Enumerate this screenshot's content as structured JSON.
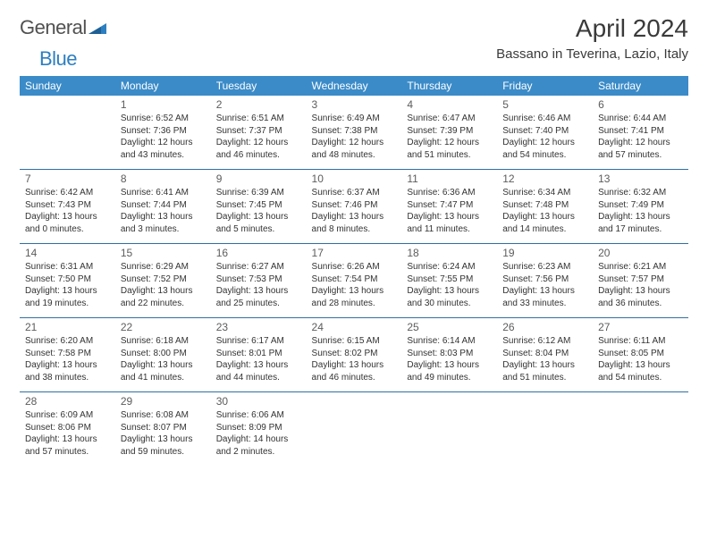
{
  "brand": {
    "part1": "General",
    "part2": "Blue"
  },
  "title": "April 2024",
  "location": "Bassano in Teverina, Lazio, Italy",
  "colors": {
    "header_bg": "#3b8bc8",
    "rule": "#2f6fa3"
  },
  "day_headers": [
    "Sunday",
    "Monday",
    "Tuesday",
    "Wednesday",
    "Thursday",
    "Friday",
    "Saturday"
  ],
  "weeks": [
    [
      null,
      {
        "n": "1",
        "sr": "6:52 AM",
        "ss": "7:36 PM",
        "dl": "12 hours and 43 minutes."
      },
      {
        "n": "2",
        "sr": "6:51 AM",
        "ss": "7:37 PM",
        "dl": "12 hours and 46 minutes."
      },
      {
        "n": "3",
        "sr": "6:49 AM",
        "ss": "7:38 PM",
        "dl": "12 hours and 48 minutes."
      },
      {
        "n": "4",
        "sr": "6:47 AM",
        "ss": "7:39 PM",
        "dl": "12 hours and 51 minutes."
      },
      {
        "n": "5",
        "sr": "6:46 AM",
        "ss": "7:40 PM",
        "dl": "12 hours and 54 minutes."
      },
      {
        "n": "6",
        "sr": "6:44 AM",
        "ss": "7:41 PM",
        "dl": "12 hours and 57 minutes."
      }
    ],
    [
      {
        "n": "7",
        "sr": "6:42 AM",
        "ss": "7:43 PM",
        "dl": "13 hours and 0 minutes."
      },
      {
        "n": "8",
        "sr": "6:41 AM",
        "ss": "7:44 PM",
        "dl": "13 hours and 3 minutes."
      },
      {
        "n": "9",
        "sr": "6:39 AM",
        "ss": "7:45 PM",
        "dl": "13 hours and 5 minutes."
      },
      {
        "n": "10",
        "sr": "6:37 AM",
        "ss": "7:46 PM",
        "dl": "13 hours and 8 minutes."
      },
      {
        "n": "11",
        "sr": "6:36 AM",
        "ss": "7:47 PM",
        "dl": "13 hours and 11 minutes."
      },
      {
        "n": "12",
        "sr": "6:34 AM",
        "ss": "7:48 PM",
        "dl": "13 hours and 14 minutes."
      },
      {
        "n": "13",
        "sr": "6:32 AM",
        "ss": "7:49 PM",
        "dl": "13 hours and 17 minutes."
      }
    ],
    [
      {
        "n": "14",
        "sr": "6:31 AM",
        "ss": "7:50 PM",
        "dl": "13 hours and 19 minutes."
      },
      {
        "n": "15",
        "sr": "6:29 AM",
        "ss": "7:52 PM",
        "dl": "13 hours and 22 minutes."
      },
      {
        "n": "16",
        "sr": "6:27 AM",
        "ss": "7:53 PM",
        "dl": "13 hours and 25 minutes."
      },
      {
        "n": "17",
        "sr": "6:26 AM",
        "ss": "7:54 PM",
        "dl": "13 hours and 28 minutes."
      },
      {
        "n": "18",
        "sr": "6:24 AM",
        "ss": "7:55 PM",
        "dl": "13 hours and 30 minutes."
      },
      {
        "n": "19",
        "sr": "6:23 AM",
        "ss": "7:56 PM",
        "dl": "13 hours and 33 minutes."
      },
      {
        "n": "20",
        "sr": "6:21 AM",
        "ss": "7:57 PM",
        "dl": "13 hours and 36 minutes."
      }
    ],
    [
      {
        "n": "21",
        "sr": "6:20 AM",
        "ss": "7:58 PM",
        "dl": "13 hours and 38 minutes."
      },
      {
        "n": "22",
        "sr": "6:18 AM",
        "ss": "8:00 PM",
        "dl": "13 hours and 41 minutes."
      },
      {
        "n": "23",
        "sr": "6:17 AM",
        "ss": "8:01 PM",
        "dl": "13 hours and 44 minutes."
      },
      {
        "n": "24",
        "sr": "6:15 AM",
        "ss": "8:02 PM",
        "dl": "13 hours and 46 minutes."
      },
      {
        "n": "25",
        "sr": "6:14 AM",
        "ss": "8:03 PM",
        "dl": "13 hours and 49 minutes."
      },
      {
        "n": "26",
        "sr": "6:12 AM",
        "ss": "8:04 PM",
        "dl": "13 hours and 51 minutes."
      },
      {
        "n": "27",
        "sr": "6:11 AM",
        "ss": "8:05 PM",
        "dl": "13 hours and 54 minutes."
      }
    ],
    [
      {
        "n": "28",
        "sr": "6:09 AM",
        "ss": "8:06 PM",
        "dl": "13 hours and 57 minutes."
      },
      {
        "n": "29",
        "sr": "6:08 AM",
        "ss": "8:07 PM",
        "dl": "13 hours and 59 minutes."
      },
      {
        "n": "30",
        "sr": "6:06 AM",
        "ss": "8:09 PM",
        "dl": "14 hours and 2 minutes."
      },
      null,
      null,
      null,
      null
    ]
  ],
  "labels": {
    "sunrise": "Sunrise: ",
    "sunset": "Sunset: ",
    "daylight": "Daylight: "
  }
}
